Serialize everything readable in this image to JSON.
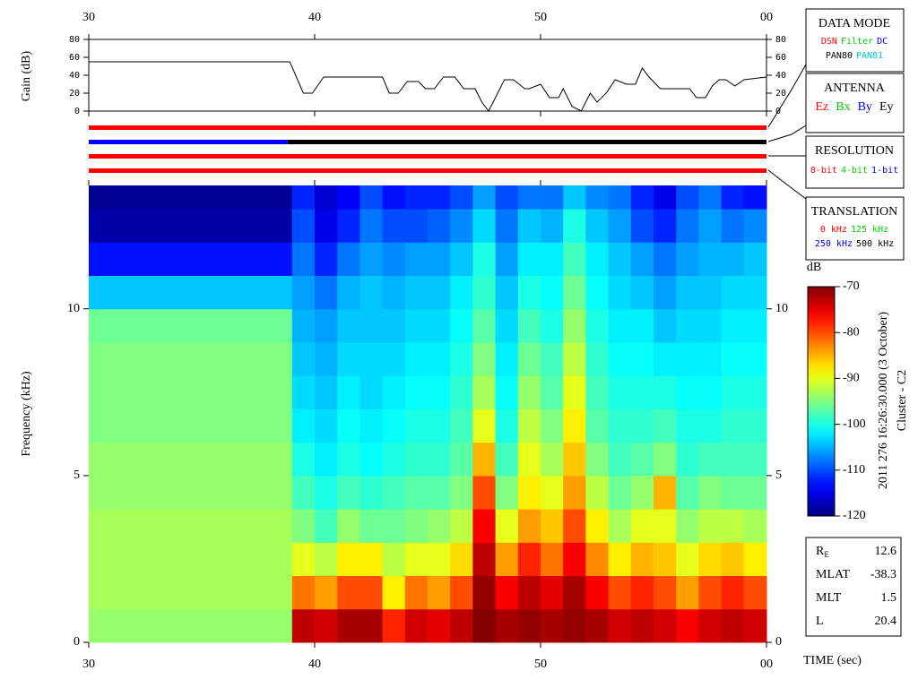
{
  "chart_data": [
    {
      "type": "line",
      "ylabel": "Gain (dB)",
      "xlim": [
        30,
        60
      ],
      "xticks": [
        30,
        40,
        50,
        {
          "value": 60,
          "label": "00"
        }
      ],
      "ylim": [
        0,
        80
      ],
      "yticks": [
        0,
        20,
        40,
        60,
        80
      ],
      "x": [
        30,
        38.9,
        39.5,
        39.9,
        40.4,
        43,
        43.3,
        43.7,
        44.1,
        44.6,
        44.9,
        45.3,
        45.7,
        46.2,
        46.6,
        47.1,
        47.4,
        47.7,
        48.1,
        48.4,
        48.8,
        49.3,
        49.5,
        50,
        50.4,
        50.8,
        51,
        51.4,
        51.8,
        52.2,
        52.5,
        52.9,
        53.3,
        53.8,
        54.2,
        54.5,
        54.8,
        55.3,
        56.6,
        56.9,
        57.3,
        57.6,
        57.9,
        58.2,
        58.6,
        59,
        60
      ],
      "series": [
        {
          "color": "#000000",
          "values": [
            55,
            55,
            20,
            20,
            38,
            38,
            20,
            20,
            33,
            33,
            25,
            25,
            38,
            38,
            25,
            25,
            10,
            0,
            20,
            35,
            35,
            25,
            25,
            30,
            15,
            15,
            25,
            5,
            0,
            20,
            10,
            20,
            35,
            30,
            30,
            48,
            38,
            25,
            25,
            15,
            15,
            28,
            35,
            35,
            28,
            35,
            38
          ]
        }
      ]
    },
    {
      "type": "heatmap",
      "ylabel": "Frequency (kHz)",
      "xlabel": "TIME (sec)",
      "xlim": [
        30,
        60
      ],
      "xticks": [
        30,
        40,
        50,
        {
          "value": 60,
          "label": "00"
        }
      ],
      "ylim": [
        0,
        13.7
      ],
      "yticks": [
        0,
        5,
        10
      ],
      "x_bins": [
        30,
        31,
        32,
        33,
        34,
        35,
        36,
        37,
        38,
        39,
        40,
        41,
        42,
        43,
        44,
        45,
        46,
        47,
        48,
        49,
        50,
        51,
        52,
        53,
        54,
        55,
        56,
        57,
        58,
        59,
        60
      ],
      "y_bins": [
        0,
        1,
        2,
        3,
        4,
        5,
        6,
        7,
        8,
        9,
        10,
        11,
        12,
        13,
        13.7
      ],
      "values": [
        [
          -94,
          -93,
          -93,
          -93,
          -94,
          -94,
          -95,
          -95,
          -95,
          -96,
          -104,
          -113,
          -118,
          -119
        ],
        [
          -94,
          -93,
          -93,
          -93,
          -94,
          -94,
          -95,
          -95,
          -95,
          -96,
          -104,
          -113,
          -118,
          -119
        ],
        [
          -94,
          -93,
          -93,
          -93,
          -94,
          -94,
          -95,
          -95,
          -95,
          -96,
          -104,
          -113,
          -118,
          -119
        ],
        [
          -94,
          -93,
          -93,
          -93,
          -94,
          -94,
          -95,
          -95,
          -95,
          -96,
          -104,
          -113,
          -118,
          -119
        ],
        [
          -94,
          -93,
          -93,
          -93,
          -94,
          -94,
          -95,
          -95,
          -95,
          -96,
          -104,
          -113,
          -118,
          -119
        ],
        [
          -94,
          -93,
          -93,
          -93,
          -94,
          -94,
          -95,
          -95,
          -95,
          -96,
          -104,
          -113,
          -118,
          -119
        ],
        [
          -94,
          -93,
          -93,
          -93,
          -94,
          -94,
          -95,
          -95,
          -95,
          -96,
          -104,
          -113,
          -118,
          -119
        ],
        [
          -94,
          -93,
          -93,
          -93,
          -94,
          -94,
          -95,
          -95,
          -95,
          -96,
          -104,
          -113,
          -118,
          -119
        ],
        [
          -94,
          -93,
          -93,
          -93,
          -94,
          -94,
          -95,
          -95,
          -95,
          -96,
          -104,
          -113,
          -118,
          -119
        ],
        [
          -73,
          -82,
          -90,
          -95,
          -98,
          -100,
          -102,
          -103,
          -104,
          -105,
          -106,
          -108,
          -110,
          -112
        ],
        [
          -74,
          -84,
          -92,
          -98,
          -100,
          -102,
          -103,
          -104,
          -105,
          -106,
          -108,
          -112,
          -115,
          -116
        ],
        [
          -72,
          -80,
          -88,
          -94,
          -98,
          -100,
          -101,
          -102,
          -103,
          -104,
          -105,
          -108,
          -112,
          -114
        ],
        [
          -72,
          -80,
          -88,
          -96,
          -99,
          -101,
          -102,
          -103,
          -103,
          -104,
          -104,
          -106,
          -108,
          -110
        ],
        [
          -78,
          -88,
          -92,
          -96,
          -98,
          -100,
          -101,
          -102,
          -103,
          -104,
          -105,
          -107,
          -110,
          -113
        ],
        [
          -74,
          -82,
          -90,
          -95,
          -97,
          -99,
          -100,
          -101,
          -102,
          -103,
          -104,
          -106,
          -110,
          -112
        ],
        [
          -75,
          -84,
          -90,
          -94,
          -97,
          -99,
          -100,
          -101,
          -102,
          -103,
          -104,
          -106,
          -109,
          -112
        ],
        [
          -73,
          -80,
          -87,
          -92,
          -95,
          -97,
          -98,
          -99,
          -100,
          -101,
          -102,
          -104,
          -107,
          -110
        ],
        [
          -70,
          -71,
          -73,
          -76,
          -80,
          -85,
          -90,
          -93,
          -95,
          -97,
          -99,
          -100,
          -103,
          -106
        ],
        [
          -72,
          -76,
          -84,
          -90,
          -95,
          -98,
          -100,
          -101,
          -102,
          -103,
          -104,
          -106,
          -108,
          -110
        ],
        [
          -71,
          -73,
          -78,
          -84,
          -88,
          -90,
          -92,
          -94,
          -96,
          -98,
          -100,
          -102,
          -104,
          -108
        ],
        [
          -72,
          -75,
          -82,
          -86,
          -90,
          -93,
          -95,
          -97,
          -98,
          -100,
          -101,
          -102,
          -105,
          -108
        ],
        [
          -71,
          -72,
          -76,
          -80,
          -84,
          -86,
          -88,
          -90,
          -92,
          -94,
          -96,
          -98,
          -100,
          -104
        ],
        [
          -72,
          -76,
          -83,
          -88,
          -92,
          -95,
          -97,
          -98,
          -99,
          -100,
          -101,
          -102,
          -104,
          -107
        ],
        [
          -74,
          -80,
          -88,
          -93,
          -96,
          -98,
          -99,
          -100,
          -101,
          -102,
          -103,
          -104,
          -106,
          -108
        ],
        [
          -73,
          -78,
          -85,
          -90,
          -94,
          -97,
          -99,
          -100,
          -101,
          -102,
          -104,
          -106,
          -110,
          -112
        ],
        [
          -74,
          -80,
          -86,
          -90,
          -85,
          -95,
          -98,
          -100,
          -102,
          -104,
          -106,
          -108,
          -112,
          -115
        ],
        [
          -76,
          -84,
          -90,
          -94,
          -97,
          -99,
          -100,
          -101,
          -102,
          -103,
          -104,
          -106,
          -108,
          -110
        ],
        [
          -74,
          -80,
          -87,
          -92,
          -95,
          -98,
          -100,
          -101,
          -102,
          -103,
          -104,
          -105,
          -106,
          -108
        ],
        [
          -73,
          -78,
          -86,
          -92,
          -96,
          -98,
          -99,
          -100,
          -101,
          -102,
          -103,
          -105,
          -108,
          -112
        ],
        [
          -74,
          -80,
          -88,
          -93,
          -96,
          -98,
          -99,
          -100,
          -101,
          -102,
          -103,
          -104,
          -107,
          -113
        ]
      ],
      "colorbar": {
        "label": "dB",
        "clim": [
          -120,
          -70
        ],
        "ticks": [
          -120,
          -110,
          -100,
          -90,
          -80,
          -70
        ]
      }
    }
  ],
  "status_bars": [
    [
      {
        "from": 30,
        "to": 60,
        "color": "#ff0000"
      }
    ],
    [
      {
        "from": 30,
        "to": 38.8,
        "color": "#0000ff"
      },
      {
        "from": 38.8,
        "to": 60,
        "color": "#000000"
      }
    ],
    [
      {
        "from": 30,
        "to": 60,
        "color": "#ff0000"
      }
    ],
    [
      {
        "from": 30,
        "to": 60,
        "color": "#ff0000"
      }
    ]
  ],
  "panels": [
    {
      "title": "DATA MODE",
      "rows": [
        [
          {
            "text": "DSN",
            "color": "#ff0000"
          },
          {
            "text": "Filter",
            "color": "#00cc00"
          },
          {
            "text": "DC",
            "color": "#0000ff"
          }
        ],
        [
          {
            "text": "PAN80",
            "color": "#000000"
          },
          {
            "text": "PAN81",
            "color": "#00cccc"
          }
        ]
      ]
    },
    {
      "title": "ANTENNA",
      "rows": [
        [
          {
            "text": "Ez",
            "color": "#ff0000"
          },
          {
            "text": "Bx",
            "color": "#00cc00"
          },
          {
            "text": "By",
            "color": "#0000ff"
          },
          {
            "text": "Ey",
            "color": "#000000"
          }
        ]
      ]
    },
    {
      "title": "RESOLUTION",
      "rows": [
        [
          {
            "text": "8-bit",
            "color": "#ff0000"
          },
          {
            "text": "4-bit",
            "color": "#00cc00"
          },
          {
            "text": "1-bit",
            "color": "#0000ff"
          }
        ]
      ]
    },
    {
      "title": "TRANSLATION",
      "rows": [
        [
          {
            "text": "0 kHz",
            "color": "#ff0000"
          },
          {
            "text": "125 kHz",
            "color": "#00cc00"
          }
        ],
        [
          {
            "text": "250 kHz",
            "color": "#0000ff"
          },
          {
            "text": "500 kHz",
            "color": "#000000"
          }
        ]
      ]
    }
  ],
  "info": [
    {
      "label": "R",
      "sub": "E",
      "value": 12.6
    },
    {
      "label": "MLAT",
      "value": -38.3
    },
    {
      "label": "MLT",
      "value": 1.5
    },
    {
      "label": "L",
      "value": 20.4
    }
  ],
  "timestamp": "2011 276 16:26:30.000 (3 October)",
  "spacecraft": "Cluster - C2"
}
